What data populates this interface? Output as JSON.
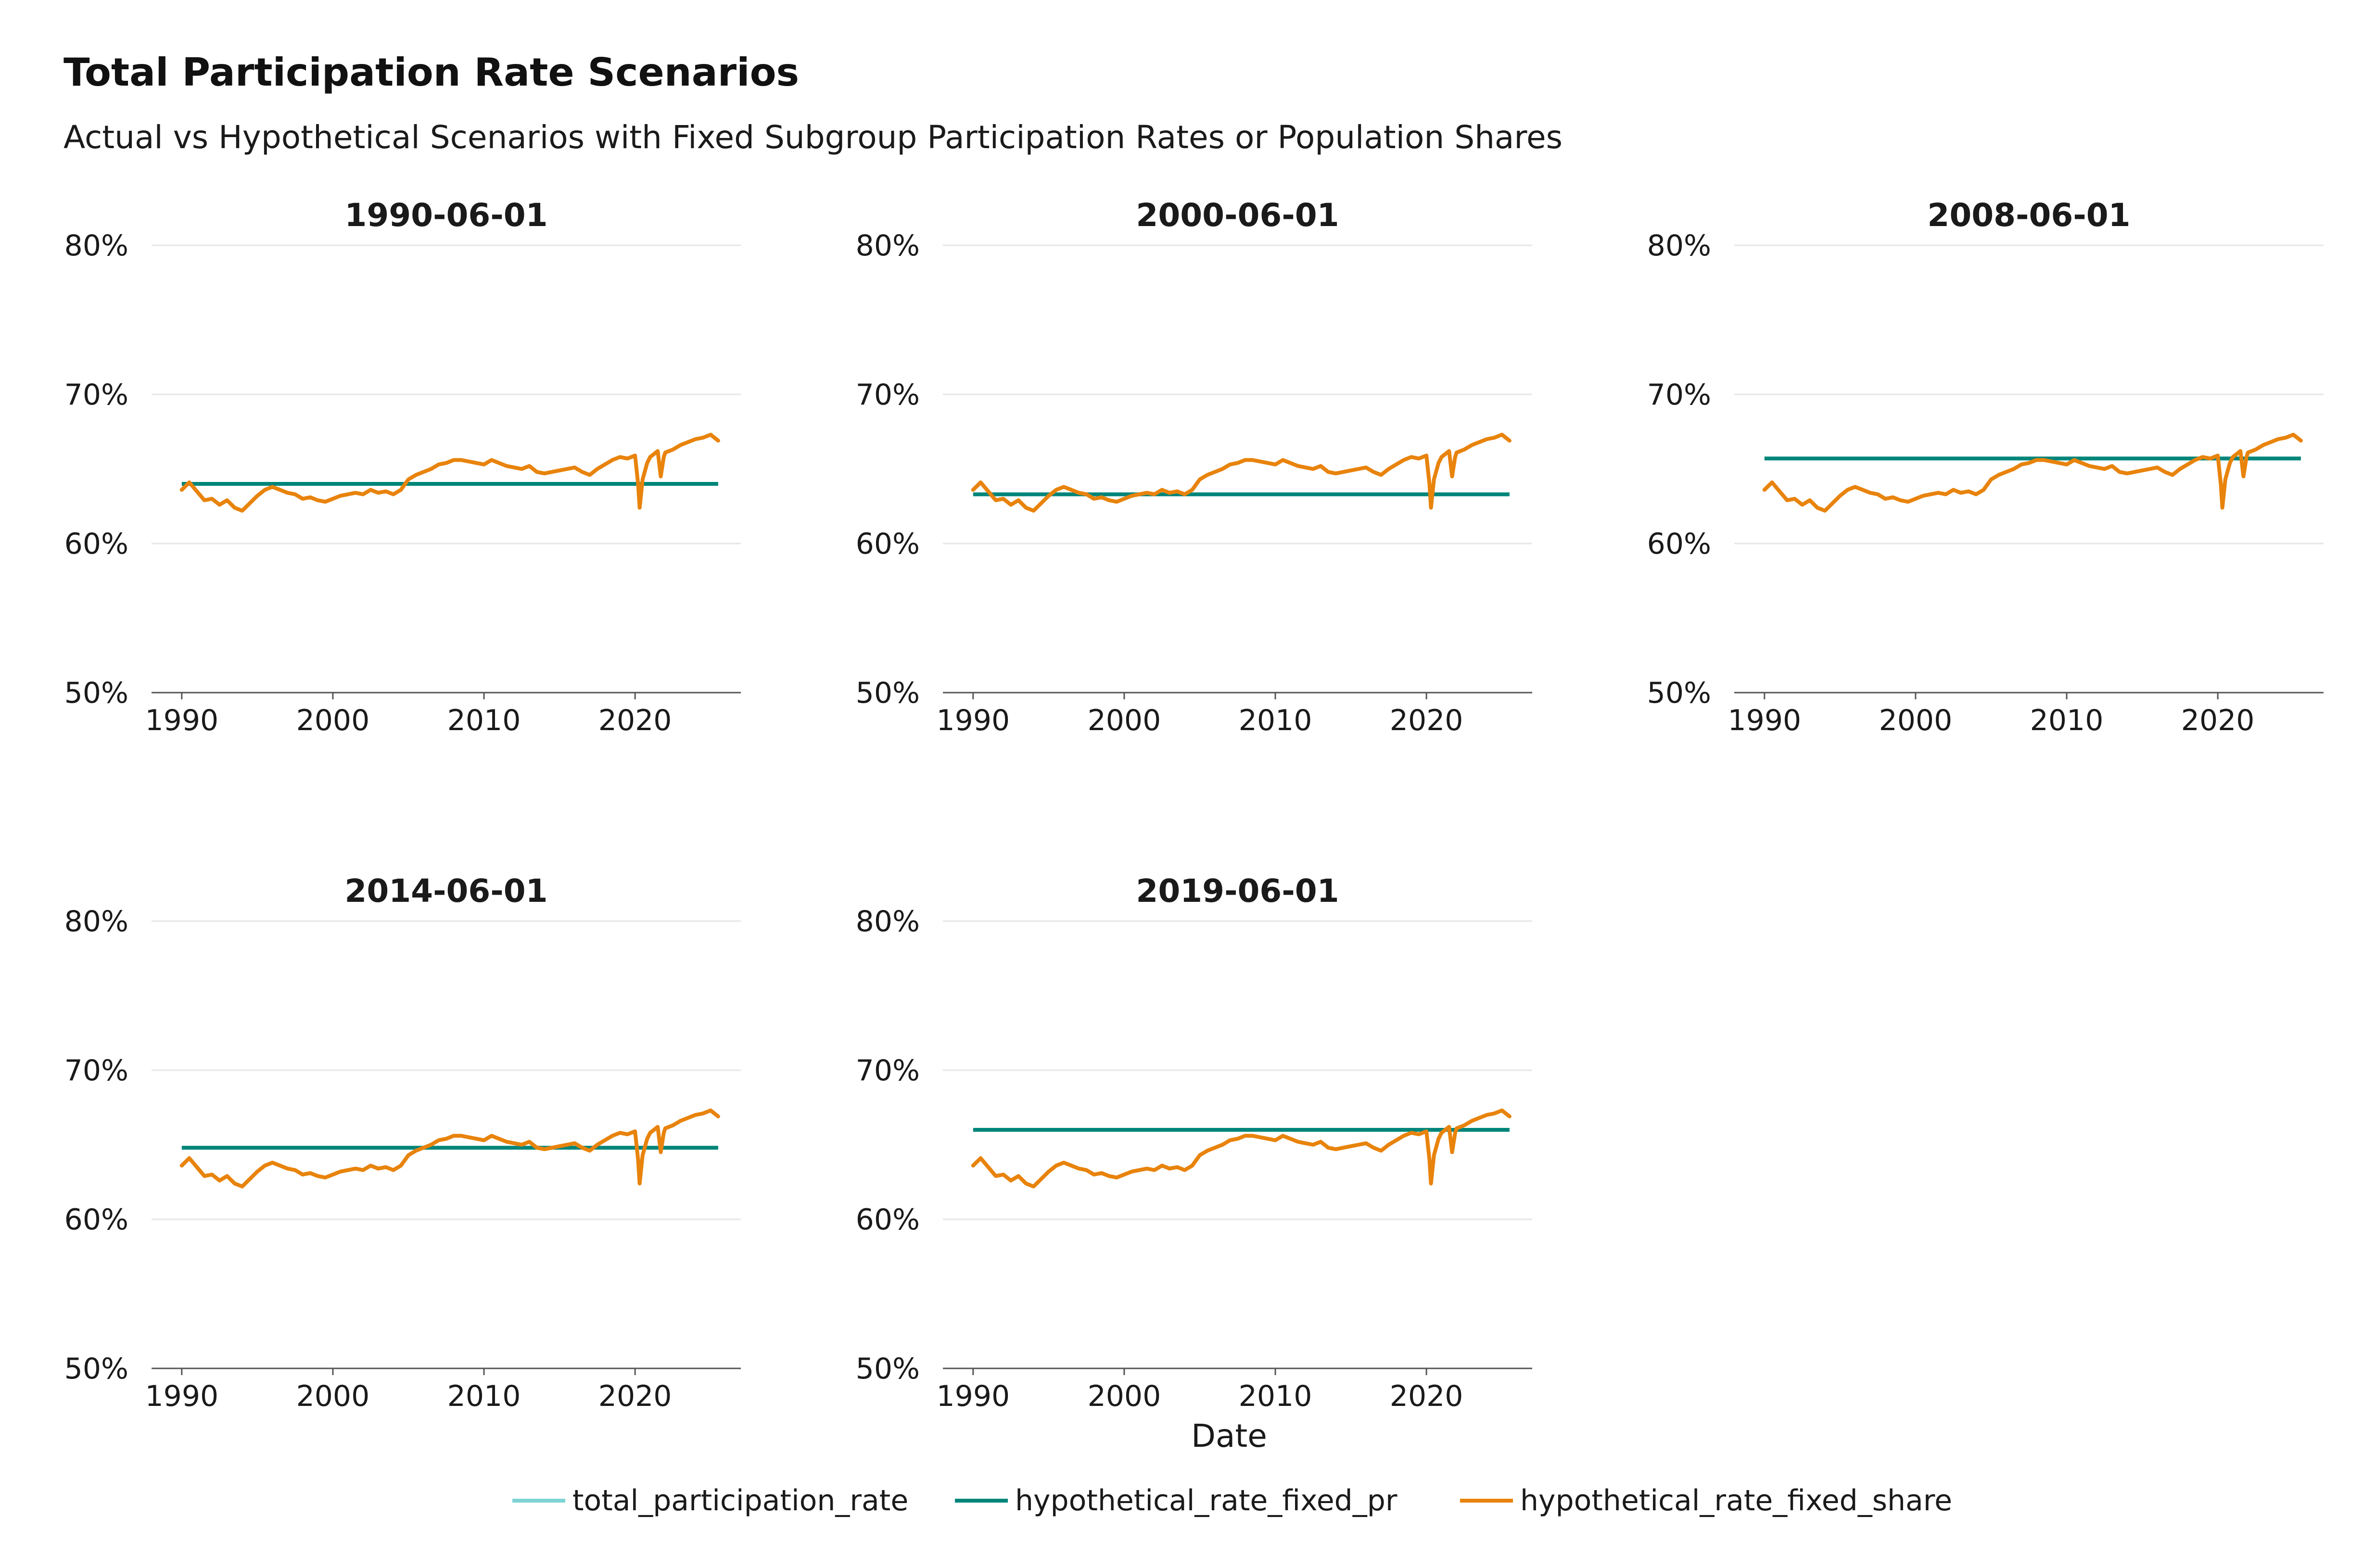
{
  "header": {
    "title": "Total Participation Rate Scenarios",
    "subtitle": "Actual vs Hypothetical Scenarios with Fixed Subgroup Participation Rates or Population Shares"
  },
  "legend": {
    "placement": "bottom",
    "items": [
      {
        "label": "total_participation_rate",
        "color": "#7fd3d3"
      },
      {
        "label": "hypothetical_rate_fixed_pr",
        "color": "#00857a"
      },
      {
        "label": "hypothetical_rate_fixed_share",
        "color": "#e8830c"
      }
    ]
  },
  "chart_data": {
    "type": "line",
    "facet_layout": "3 columns, 2 rows",
    "xlabel": "Date",
    "ylabel": "",
    "xlim": [
      1988,
      2027
    ],
    "ylim": [
      50,
      80
    ],
    "x_ticks": [
      1990,
      2000,
      2010,
      2020
    ],
    "x_tick_labels": [
      "1990",
      "2000",
      "2010",
      "2020"
    ],
    "y_ticks": [
      50,
      60,
      70,
      80
    ],
    "y_tick_labels": [
      "50%",
      "60%",
      "70%",
      "80%"
    ],
    "y_unit": "%",
    "grid": true,
    "series_names": [
      "total_participation_rate",
      "hypothetical_rate_fixed_pr",
      "hypothetical_rate_fixed_share"
    ],
    "share_series": {
      "x": [
        1990.0,
        1990.5,
        1991.0,
        1991.5,
        1992.0,
        1992.5,
        1993.0,
        1993.5,
        1994.0,
        1994.5,
        1995.0,
        1995.5,
        1996.0,
        1996.5,
        1997.0,
        1997.5,
        1998.0,
        1998.5,
        1999.0,
        1999.5,
        2000.0,
        2000.5,
        2001.0,
        2001.5,
        2002.0,
        2002.5,
        2003.0,
        2003.5,
        2004.0,
        2004.5,
        2005.0,
        2005.5,
        2006.0,
        2006.5,
        2007.0,
        2007.5,
        2008.0,
        2008.5,
        2009.0,
        2009.5,
        2010.0,
        2010.5,
        2011.0,
        2011.5,
        2012.0,
        2012.5,
        2013.0,
        2013.5,
        2014.0,
        2014.5,
        2015.0,
        2015.5,
        2016.0,
        2016.5,
        2017.0,
        2017.5,
        2018.0,
        2018.5,
        2019.0,
        2019.5,
        2020.0,
        2020.2,
        2020.3,
        2020.5,
        2020.8,
        2021.0,
        2021.5,
        2021.7,
        2021.9,
        2022.0,
        2022.5,
        2023.0,
        2023.5,
        2024.0,
        2024.5,
        2025.0,
        2025.5
      ],
      "y": [
        63.6,
        64.1,
        63.5,
        62.9,
        63.0,
        62.6,
        62.9,
        62.4,
        62.2,
        62.7,
        63.2,
        63.6,
        63.8,
        63.6,
        63.4,
        63.3,
        63.0,
        63.1,
        62.9,
        62.8,
        63.0,
        63.2,
        63.3,
        63.4,
        63.3,
        63.6,
        63.4,
        63.5,
        63.3,
        63.6,
        64.3,
        64.6,
        64.8,
        65.0,
        65.3,
        65.4,
        65.6,
        65.6,
        65.5,
        65.4,
        65.3,
        65.6,
        65.4,
        65.2,
        65.1,
        65.0,
        65.2,
        64.8,
        64.7,
        64.8,
        64.9,
        65.0,
        65.1,
        64.8,
        64.6,
        65.0,
        65.3,
        65.6,
        65.8,
        65.7,
        65.9,
        64.0,
        62.4,
        64.3,
        65.4,
        65.8,
        66.2,
        64.5,
        65.8,
        66.1,
        66.3,
        66.6,
        66.8,
        67.0,
        67.1,
        67.3,
        66.9
      ]
    },
    "facets": [
      {
        "title": "1990-06-01",
        "fixed_pr_value": 64.0
      },
      {
        "title": "2000-06-01",
        "fixed_pr_value": 63.3
      },
      {
        "title": "2008-06-01",
        "fixed_pr_value": 65.7
      },
      {
        "title": "2014-06-01",
        "fixed_pr_value": 64.8
      },
      {
        "title": "2019-06-01",
        "fixed_pr_value": 66.0
      }
    ]
  }
}
